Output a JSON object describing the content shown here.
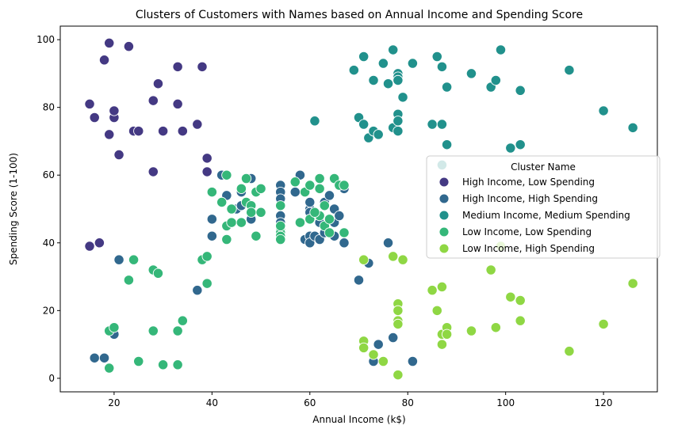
{
  "chart_data": {
    "type": "scatter",
    "title": "Clusters of Customers with Names based on Annual Income and Spending Score",
    "xlabel": "Annual Income (k$)",
    "ylabel": "Spending Score (1-100)",
    "xlim": [
      9,
      131
    ],
    "ylim": [
      -4,
      104
    ],
    "xticks": [
      20,
      40,
      60,
      80,
      100,
      120
    ],
    "yticks": [
      0,
      20,
      40,
      60,
      80,
      100
    ],
    "grid": false,
    "legend": {
      "title": "Cluster Name",
      "placement": "center-right"
    },
    "series": [
      {
        "name": "High Income, Low Spending",
        "color": "#443983",
        "points": [
          [
            19,
            99
          ],
          [
            18,
            94
          ],
          [
            23,
            98
          ],
          [
            15,
            81
          ],
          [
            16,
            77
          ],
          [
            20,
            77
          ],
          [
            20,
            79
          ],
          [
            19,
            72
          ],
          [
            21,
            66
          ],
          [
            24,
            73
          ],
          [
            25,
            73
          ],
          [
            28,
            82
          ],
          [
            29,
            87
          ],
          [
            33,
            92
          ],
          [
            33,
            81
          ],
          [
            30,
            73
          ],
          [
            34,
            73
          ],
          [
            28,
            61
          ],
          [
            38,
            92
          ],
          [
            37,
            75
          ],
          [
            39,
            65
          ],
          [
            39,
            61
          ],
          [
            15,
            39
          ],
          [
            17,
            40
          ]
        ]
      },
      {
        "name": "High Income, High Spending",
        "color": "#31688e",
        "points": [
          [
            16,
            6
          ],
          [
            18,
            6
          ],
          [
            20,
            13
          ],
          [
            21,
            35
          ],
          [
            37,
            26
          ],
          [
            40,
            47
          ],
          [
            40,
            42
          ],
          [
            42,
            60
          ],
          [
            43,
            54
          ],
          [
            45,
            50
          ],
          [
            46,
            55
          ],
          [
            46,
            51
          ],
          [
            48,
            59
          ],
          [
            48,
            47
          ],
          [
            54,
            57
          ],
          [
            54,
            55
          ],
          [
            54,
            53
          ],
          [
            54,
            48
          ],
          [
            54,
            46
          ],
          [
            57,
            55
          ],
          [
            58,
            60
          ],
          [
            59,
            41
          ],
          [
            60,
            50
          ],
          [
            60,
            52
          ],
          [
            60,
            49
          ],
          [
            60,
            42
          ],
          [
            60,
            40
          ],
          [
            61,
            42
          ],
          [
            62,
            41
          ],
          [
            62,
            46
          ],
          [
            63,
            52
          ],
          [
            63,
            43
          ],
          [
            64,
            54
          ],
          [
            65,
            46
          ],
          [
            65,
            42
          ],
          [
            65,
            50
          ],
          [
            66,
            48
          ],
          [
            67,
            56
          ],
          [
            67,
            40
          ],
          [
            70,
            29
          ],
          [
            72,
            34
          ],
          [
            73,
            5
          ],
          [
            74,
            10
          ],
          [
            76,
            40
          ],
          [
            77,
            12
          ],
          [
            81,
            5
          ]
        ]
      },
      {
        "name": "Medium Income, Medium Spending",
        "color": "#21918c",
        "points": [
          [
            69,
            91
          ],
          [
            71,
            95
          ],
          [
            70,
            77
          ],
          [
            71,
            75
          ],
          [
            72,
            71
          ],
          [
            73,
            88
          ],
          [
            73,
            73
          ],
          [
            74,
            72
          ],
          [
            75,
            93
          ],
          [
            76,
            87
          ],
          [
            77,
            97
          ],
          [
            77,
            74
          ],
          [
            78,
            90
          ],
          [
            78,
            89
          ],
          [
            78,
            88
          ],
          [
            78,
            78
          ],
          [
            78,
            76
          ],
          [
            78,
            73
          ],
          [
            79,
            83
          ],
          [
            81,
            93
          ],
          [
            85,
            75
          ],
          [
            86,
            95
          ],
          [
            87,
            92
          ],
          [
            87,
            75
          ],
          [
            88,
            86
          ],
          [
            88,
            69
          ],
          [
            93,
            90
          ],
          [
            97,
            86
          ],
          [
            98,
            88
          ],
          [
            99,
            97
          ],
          [
            101,
            68
          ],
          [
            103,
            85
          ],
          [
            103,
            69
          ],
          [
            113,
            91
          ],
          [
            120,
            79
          ],
          [
            126,
            74
          ],
          [
            61,
            76
          ],
          [
            87,
            63
          ]
        ]
      },
      {
        "name": "Low Income, Low Spending",
        "color": "#35b779",
        "points": [
          [
            19,
            14
          ],
          [
            20,
            15
          ],
          [
            19,
            3
          ],
          [
            23,
            29
          ],
          [
            24,
            35
          ],
          [
            25,
            5
          ],
          [
            28,
            32
          ],
          [
            28,
            14
          ],
          [
            29,
            31
          ],
          [
            30,
            4
          ],
          [
            33,
            14
          ],
          [
            33,
            4
          ],
          [
            34,
            17
          ],
          [
            38,
            35
          ],
          [
            39,
            36
          ],
          [
            39,
            28
          ],
          [
            40,
            55
          ],
          [
            42,
            52
          ],
          [
            43,
            60
          ],
          [
            43,
            45
          ],
          [
            43,
            41
          ],
          [
            44,
            50
          ],
          [
            44,
            46
          ],
          [
            46,
            56
          ],
          [
            46,
            46
          ],
          [
            47,
            59
          ],
          [
            47,
            52
          ],
          [
            48,
            51
          ],
          [
            48,
            49
          ],
          [
            49,
            55
          ],
          [
            49,
            42
          ],
          [
            50,
            56
          ],
          [
            50,
            49
          ],
          [
            54,
            51
          ],
          [
            54,
            44
          ],
          [
            54,
            43
          ],
          [
            54,
            42
          ],
          [
            54,
            41
          ],
          [
            57,
            58
          ],
          [
            58,
            46
          ],
          [
            59,
            55
          ],
          [
            60,
            47
          ],
          [
            62,
            59
          ],
          [
            62,
            56
          ],
          [
            62,
            48
          ],
          [
            63,
            45
          ],
          [
            64,
            43
          ],
          [
            65,
            59
          ],
          [
            67,
            43
          ],
          [
            63,
            51
          ],
          [
            64,
            47
          ],
          [
            60,
            57
          ],
          [
            66,
            57
          ],
          [
            67,
            57
          ],
          [
            61,
            49
          ],
          [
            54,
            45
          ]
        ]
      },
      {
        "name": "Low Income, High Spending",
        "color": "#8fd744",
        "points": [
          [
            71,
            35
          ],
          [
            71,
            11
          ],
          [
            71,
            9
          ],
          [
            73,
            7
          ],
          [
            75,
            5
          ],
          [
            77,
            36
          ],
          [
            78,
            22
          ],
          [
            78,
            20
          ],
          [
            78,
            17
          ],
          [
            78,
            16
          ],
          [
            78,
            1
          ],
          [
            79,
            35
          ],
          [
            85,
            26
          ],
          [
            86,
            20
          ],
          [
            87,
            27
          ],
          [
            87,
            13
          ],
          [
            87,
            10
          ],
          [
            88,
            15
          ],
          [
            88,
            13
          ],
          [
            93,
            14
          ],
          [
            97,
            32
          ],
          [
            98,
            15
          ],
          [
            99,
            39
          ],
          [
            101,
            24
          ],
          [
            103,
            23
          ],
          [
            103,
            17
          ],
          [
            113,
            8
          ],
          [
            120,
            16
          ],
          [
            126,
            28
          ]
        ]
      }
    ]
  }
}
